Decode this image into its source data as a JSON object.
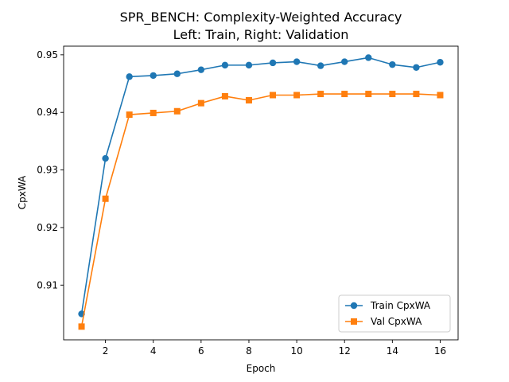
{
  "chart_data": {
    "type": "line",
    "title_line1": "SPR_BENCH: Complexity-Weighted Accuracy",
    "title_line2": "Left: Train, Right: Validation",
    "xlabel": "Epoch",
    "ylabel": "CpxWA",
    "xlim": [
      0.25,
      16.75
    ],
    "ylim": [
      0.9005,
      0.9515
    ],
    "xticks": [
      2,
      4,
      6,
      8,
      10,
      12,
      14,
      16
    ],
    "yticks": [
      0.91,
      0.92,
      0.93,
      0.94,
      0.95
    ],
    "x": [
      1,
      2,
      3,
      4,
      5,
      6,
      7,
      8,
      9,
      10,
      11,
      12,
      13,
      14,
      15,
      16
    ],
    "series": [
      {
        "name": "Train CpxWA",
        "color": "#1f77b4",
        "marker": "circle",
        "values": [
          0.905,
          0.932,
          0.9462,
          0.9464,
          0.9467,
          0.9474,
          0.9482,
          0.9482,
          0.9486,
          0.9488,
          0.9481,
          0.9488,
          0.9495,
          0.9483,
          0.9478,
          0.9487
        ]
      },
      {
        "name": "Val CpxWA",
        "color": "#ff7f0e",
        "marker": "square",
        "values": [
          0.9028,
          0.925,
          0.9396,
          0.9399,
          0.9402,
          0.9416,
          0.9428,
          0.9421,
          0.943,
          0.943,
          0.9432,
          0.9432,
          0.9432,
          0.9432,
          0.9432,
          0.943
        ]
      }
    ],
    "legend_position": "lower-right",
    "grid": false
  }
}
